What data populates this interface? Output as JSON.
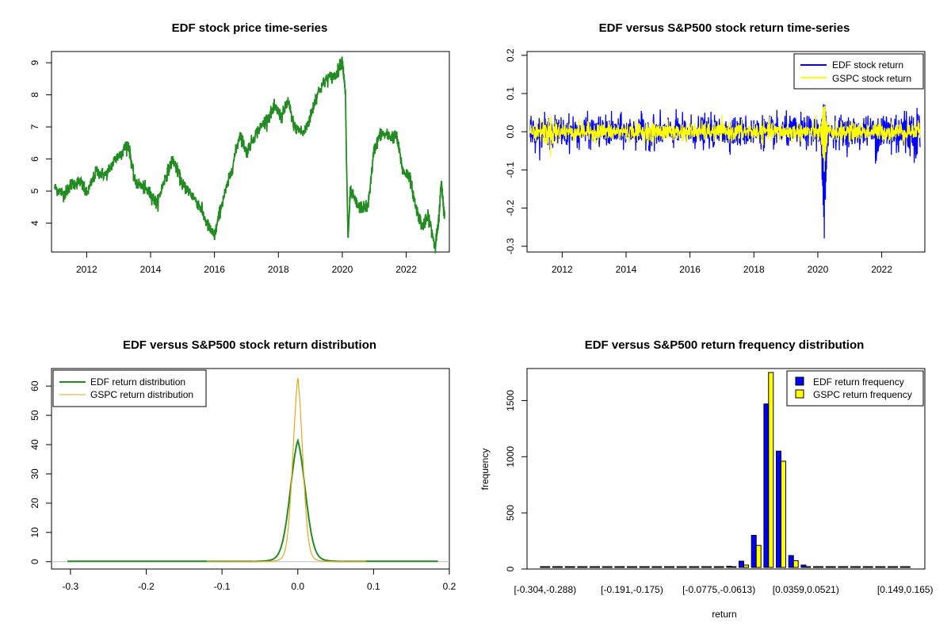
{
  "chart_data": [
    {
      "id": "price",
      "type": "line",
      "title": "EDF stock price time-series",
      "xlabel": "",
      "ylabel": "",
      "xlim": [
        2010.9,
        2023.35
      ],
      "ylim": [
        3.1,
        9.35
      ],
      "x_ticks": [
        "2012",
        "2014",
        "2016",
        "2018",
        "2020",
        "2022"
      ],
      "y_ticks": [
        "4",
        "5",
        "6",
        "7",
        "8",
        "9"
      ],
      "color": "#228b22",
      "series": [
        {
          "name": "EDF stock price",
          "x": [
            2011.0,
            2011.3,
            2011.5,
            2011.8,
            2012.0,
            2012.3,
            2012.6,
            2012.9,
            2013.1,
            2013.3,
            2013.5,
            2013.8,
            2014.0,
            2014.2,
            2014.45,
            2014.7,
            2015.0,
            2015.2,
            2015.5,
            2015.8,
            2016.0,
            2016.2,
            2016.5,
            2016.8,
            2017.0,
            2017.3,
            2017.6,
            2017.9,
            2018.1,
            2018.3,
            2018.5,
            2018.8,
            2019.0,
            2019.2,
            2019.5,
            2019.8,
            2020.0,
            2020.1,
            2020.13,
            2020.18,
            2020.25,
            2020.5,
            2020.8,
            2021.0,
            2021.2,
            2021.5,
            2021.7,
            2021.9,
            2022.1,
            2022.3,
            2022.5,
            2022.7,
            2022.9,
            2023.0,
            2023.1,
            2023.2
          ],
          "y": [
            5.1,
            4.9,
            5.2,
            5.3,
            4.9,
            5.6,
            5.5,
            6.0,
            6.2,
            6.5,
            5.3,
            5.1,
            4.9,
            4.6,
            5.4,
            6.0,
            5.2,
            5.0,
            4.6,
            3.9,
            3.6,
            4.5,
            5.5,
            6.8,
            6.2,
            6.8,
            7.2,
            7.6,
            7.3,
            7.8,
            7.0,
            6.8,
            7.3,
            8.0,
            8.5,
            8.6,
            9.1,
            8.0,
            6.0,
            3.5,
            5.0,
            4.5,
            4.5,
            6.3,
            6.8,
            6.7,
            6.7,
            5.6,
            5.5,
            4.5,
            3.9,
            4.2,
            3.3,
            3.9,
            5.3,
            4.2
          ]
        }
      ]
    },
    {
      "id": "returns",
      "type": "line",
      "title": "EDF versus S&P500 stock return time-series",
      "xlabel": "",
      "ylabel": "",
      "xlim": [
        2010.9,
        2023.35
      ],
      "ylim": [
        -0.315,
        0.21
      ],
      "x_ticks": [
        "2012",
        "2014",
        "2016",
        "2018",
        "2020",
        "2022"
      ],
      "y_ticks": [
        "-0.3",
        "-0.2",
        "-0.1",
        "0.0",
        "0.1",
        "0.2"
      ],
      "legend": "top-right",
      "series": [
        {
          "name": "EDF stock return",
          "color": "#0000ff",
          "amplitude_typical": 0.02,
          "crash_x": 2020.2,
          "crash_min": -0.3,
          "crash_max": 0.1
        },
        {
          "name": "GSPC stock return",
          "color": "#ffff00",
          "amplitude_typical": 0.012,
          "crash_x": 2020.2,
          "crash_min": -0.12,
          "crash_max": 0.09
        }
      ]
    },
    {
      "id": "density",
      "type": "line",
      "title": "EDF versus S&P500 stock return distribution",
      "xlabel": "",
      "ylabel": "",
      "xlim": [
        -0.325,
        0.2
      ],
      "ylim": [
        -2.5,
        66
      ],
      "x_ticks": [
        "-0.3",
        "-0.2",
        "-0.1",
        "0.0",
        "0.1",
        "0.2"
      ],
      "y_ticks": [
        "0",
        "10",
        "20",
        "30",
        "40",
        "50",
        "60"
      ],
      "legend": "top-left",
      "series": [
        {
          "name": "EDF return distribution",
          "color": "#228b22",
          "peak_x": 0.0,
          "peak_y": 41.5,
          "range": [
            -0.304,
            0.185
          ]
        },
        {
          "name": "GSPC return distribution",
          "color": "#e6a817",
          "peak_x": 0.0,
          "peak_y": 63,
          "range": [
            -0.12,
            0.09
          ]
        }
      ]
    },
    {
      "id": "histogram",
      "type": "bar",
      "title": "EDF versus S&P500 return frequency distribution",
      "xlabel": "return",
      "ylabel": "frequency",
      "ylim": [
        0,
        1750
      ],
      "y_ticks": [
        "0",
        "500",
        "1000",
        "1500"
      ],
      "category_labels_shown": [
        "[-0.304,-0.288)",
        "[-0.191,-0.175)",
        "[-0.0775,-0.0613)",
        "[0.0359,0.0521)",
        "[0.149,0.165)"
      ],
      "legend": "top-right",
      "categories_count": 30,
      "series": [
        {
          "name": "EDF return frequency",
          "color": "#0000ff",
          "values": [
            1,
            0,
            0,
            0,
            0,
            0,
            0,
            0,
            1,
            0,
            0,
            1,
            2,
            4,
            10,
            25,
            70,
            300,
            1470,
            1050,
            120,
            35,
            12,
            5,
            6,
            4,
            2,
            1,
            1,
            1
          ]
        },
        {
          "name": "GSPC return frequency",
          "color": "#ffff00",
          "values": [
            0,
            0,
            0,
            0,
            0,
            0,
            0,
            0,
            0,
            0,
            0,
            0,
            0,
            1,
            3,
            8,
            35,
            210,
            1800,
            960,
            75,
            10,
            3,
            1,
            0,
            0,
            0,
            0,
            0,
            0
          ]
        }
      ]
    }
  ]
}
